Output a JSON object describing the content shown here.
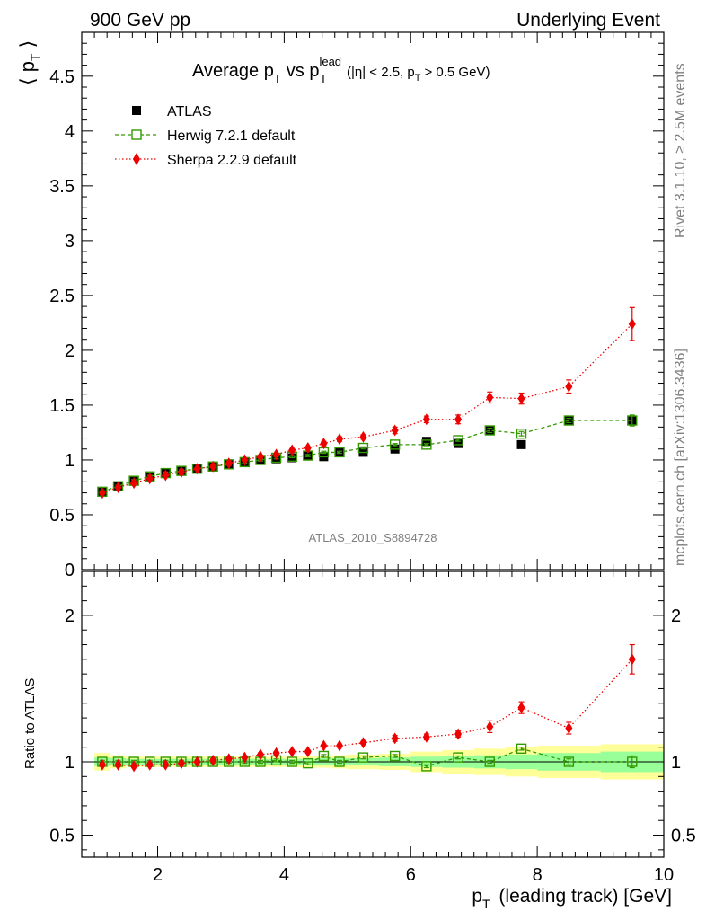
{
  "header": {
    "left": "900 GeV pp",
    "right": "Underlying Event"
  },
  "side": {
    "rivet": "Rivet 3.1.10, ≥ 2.5M events",
    "mcplots": "mcplots.cern.ch [arXiv:1306.3436]"
  },
  "chart_data": [
    {
      "type": "scatter",
      "title_parts": {
        "base": "Average p",
        "t_sub": "T",
        "vs": "vs p",
        "lead_sup": "lead",
        "lead_sub": "T",
        "cuts_a": "(|η| < 2.5, p",
        "cuts_sub": "T",
        "cuts_b": "> 0.5 GeV)"
      },
      "watermark": "ATLAS_2010_S8894728",
      "ylabel": "⟨ p_T ⟩",
      "ylim": [
        0,
        4.9
      ],
      "yticks": [
        0,
        0.5,
        1,
        1.5,
        2,
        2.5,
        3,
        3.5,
        4,
        4.5
      ],
      "ytick_labels": [
        "0",
        "0.5",
        "1",
        "1.5",
        "2",
        "2.5",
        "3",
        "3.5",
        "4",
        "4.5"
      ],
      "xlim": [
        0.8,
        10.0
      ],
      "legend_position": "top-left",
      "series": [
        {
          "name": "ATLAS",
          "color": "#000000",
          "marker": "filled-square",
          "x": [
            1.125,
            1.375,
            1.625,
            1.875,
            2.125,
            2.375,
            2.625,
            2.875,
            3.125,
            3.375,
            3.625,
            3.875,
            4.125,
            4.375,
            4.625,
            4.875,
            5.25,
            5.75,
            6.25,
            6.75,
            7.25,
            7.75,
            8.5,
            9.5
          ],
          "y": [
            0.71,
            0.76,
            0.81,
            0.85,
            0.88,
            0.9,
            0.92,
            0.94,
            0.96,
            0.98,
            1.0,
            1.01,
            1.02,
            1.04,
            1.03,
            1.07,
            1.07,
            1.1,
            1.17,
            1.15,
            1.27,
            1.14,
            1.36,
            1.36
          ],
          "yerr": [
            0.02,
            0.02,
            0.02,
            0.02,
            0.02,
            0.02,
            0.02,
            0.02,
            0.02,
            0.02,
            0.02,
            0.02,
            0.02,
            0.02,
            0.02,
            0.02,
            0.02,
            0.02,
            0.02,
            0.02,
            0.03,
            0.03,
            0.03,
            0.04
          ]
        },
        {
          "name": "Herwig 7.2.1 default",
          "color": "#339900",
          "marker": "open-square",
          "line": "dashed",
          "x": [
            1.125,
            1.375,
            1.625,
            1.875,
            2.125,
            2.375,
            2.625,
            2.875,
            3.125,
            3.375,
            3.625,
            3.875,
            4.125,
            4.375,
            4.625,
            4.875,
            5.25,
            5.75,
            6.25,
            6.75,
            7.25,
            7.75,
            8.5,
            9.5
          ],
          "y": [
            0.71,
            0.76,
            0.81,
            0.85,
            0.88,
            0.9,
            0.92,
            0.94,
            0.96,
            0.98,
            1.0,
            1.02,
            1.03,
            1.04,
            1.07,
            1.07,
            1.11,
            1.14,
            1.14,
            1.18,
            1.27,
            1.24,
            1.36,
            1.36
          ],
          "yerr": [
            0.01,
            0.01,
            0.01,
            0.01,
            0.01,
            0.01,
            0.01,
            0.01,
            0.01,
            0.01,
            0.01,
            0.01,
            0.01,
            0.01,
            0.01,
            0.01,
            0.01,
            0.01,
            0.01,
            0.01,
            0.02,
            0.02,
            0.02,
            0.05
          ]
        },
        {
          "name": "Sherpa 2.2.9 default",
          "color": "#ee0000",
          "marker": "diamond",
          "line": "dotted",
          "x": [
            1.125,
            1.375,
            1.625,
            1.875,
            2.125,
            2.375,
            2.625,
            2.875,
            3.125,
            3.375,
            3.625,
            3.875,
            4.125,
            4.375,
            4.625,
            4.875,
            5.25,
            5.75,
            6.25,
            6.75,
            7.25,
            7.75,
            8.5,
            9.5
          ],
          "y": [
            0.7,
            0.75,
            0.79,
            0.83,
            0.86,
            0.89,
            0.92,
            0.94,
            0.97,
            1.0,
            1.03,
            1.05,
            1.09,
            1.11,
            1.15,
            1.19,
            1.21,
            1.27,
            1.37,
            1.37,
            1.57,
            1.56,
            1.67,
            2.24
          ],
          "yerr": [
            0.01,
            0.01,
            0.01,
            0.01,
            0.01,
            0.01,
            0.01,
            0.01,
            0.01,
            0.01,
            0.01,
            0.01,
            0.01,
            0.01,
            0.02,
            0.02,
            0.02,
            0.03,
            0.03,
            0.04,
            0.05,
            0.05,
            0.06,
            0.15
          ]
        }
      ]
    },
    {
      "type": "scatter",
      "ylabel": "Ratio to ATLAS",
      "xlabel": "p_T (leading track) [GeV]",
      "xlim": [
        0.8,
        10.0
      ],
      "xticks": [
        2,
        4,
        6,
        8,
        10
      ],
      "xtick_labels": [
        "2",
        "4",
        "6",
        "8",
        "10"
      ],
      "ylim": [
        0.35,
        2.3
      ],
      "yticks": [
        0.5,
        1,
        2
      ],
      "ytick_labels": [
        "0.5",
        "1",
        "2"
      ],
      "bands": {
        "edges": [
          1.0,
          1.25,
          1.5,
          1.75,
          2.0,
          2.25,
          2.5,
          2.75,
          3.0,
          3.25,
          3.5,
          3.75,
          4.0,
          4.25,
          4.5,
          4.75,
          5.0,
          5.5,
          6.0,
          6.5,
          7.0,
          7.5,
          8.0,
          9.0,
          10.0
        ],
        "stat_err": [
          0.03,
          0.025,
          0.02,
          0.02,
          0.02,
          0.02,
          0.02,
          0.02,
          0.02,
          0.02,
          0.02,
          0.02,
          0.02,
          0.02,
          0.025,
          0.025,
          0.025,
          0.03,
          0.035,
          0.04,
          0.045,
          0.05,
          0.06,
          0.07
        ],
        "total_err": [
          0.06,
          0.045,
          0.035,
          0.035,
          0.035,
          0.035,
          0.035,
          0.035,
          0.035,
          0.035,
          0.035,
          0.035,
          0.035,
          0.04,
          0.04,
          0.045,
          0.05,
          0.055,
          0.07,
          0.08,
          0.09,
          0.1,
          0.11,
          0.12
        ],
        "stat_color": "#99ff99",
        "total_color": "#ffff99"
      },
      "series": [
        {
          "name": "Herwig 7.2.1 default",
          "color": "#339900",
          "marker": "open-square",
          "line": "dashed",
          "x": [
            1.125,
            1.375,
            1.625,
            1.875,
            2.125,
            2.375,
            2.625,
            2.875,
            3.125,
            3.375,
            3.625,
            3.875,
            4.125,
            4.375,
            4.625,
            4.875,
            5.25,
            5.75,
            6.25,
            6.75,
            7.25,
            7.75,
            8.5,
            9.5
          ],
          "y": [
            1.0,
            1.0,
            1.0,
            1.0,
            1.0,
            1.0,
            1.0,
            1.0,
            1.0,
            1.0,
            1.0,
            1.01,
            1.0,
            0.99,
            1.04,
            1.0,
            1.03,
            1.04,
            0.97,
            1.03,
            1.0,
            1.09,
            1.0,
            1.0
          ],
          "yerr": [
            0.01,
            0.01,
            0.01,
            0.01,
            0.01,
            0.01,
            0.01,
            0.01,
            0.01,
            0.01,
            0.01,
            0.01,
            0.01,
            0.01,
            0.01,
            0.01,
            0.01,
            0.01,
            0.01,
            0.01,
            0.01,
            0.01,
            0.02,
            0.04
          ]
        },
        {
          "name": "Sherpa 2.2.9 default",
          "color": "#ee0000",
          "marker": "diamond",
          "line": "dotted",
          "x": [
            1.125,
            1.375,
            1.625,
            1.875,
            2.125,
            2.375,
            2.625,
            2.875,
            3.125,
            3.375,
            3.625,
            3.875,
            4.125,
            4.375,
            4.625,
            4.875,
            5.25,
            5.75,
            6.25,
            6.75,
            7.25,
            7.75,
            8.5,
            9.5
          ],
          "y": [
            0.98,
            0.98,
            0.97,
            0.98,
            0.98,
            0.99,
            1.0,
            1.01,
            1.02,
            1.03,
            1.05,
            1.06,
            1.07,
            1.07,
            1.11,
            1.11,
            1.13,
            1.16,
            1.17,
            1.19,
            1.24,
            1.37,
            1.23,
            1.7
          ],
          "yerr": [
            0.01,
            0.01,
            0.01,
            0.01,
            0.01,
            0.01,
            0.01,
            0.01,
            0.01,
            0.01,
            0.01,
            0.01,
            0.01,
            0.01,
            0.01,
            0.01,
            0.01,
            0.02,
            0.02,
            0.02,
            0.04,
            0.04,
            0.04,
            0.1
          ]
        }
      ]
    }
  ]
}
